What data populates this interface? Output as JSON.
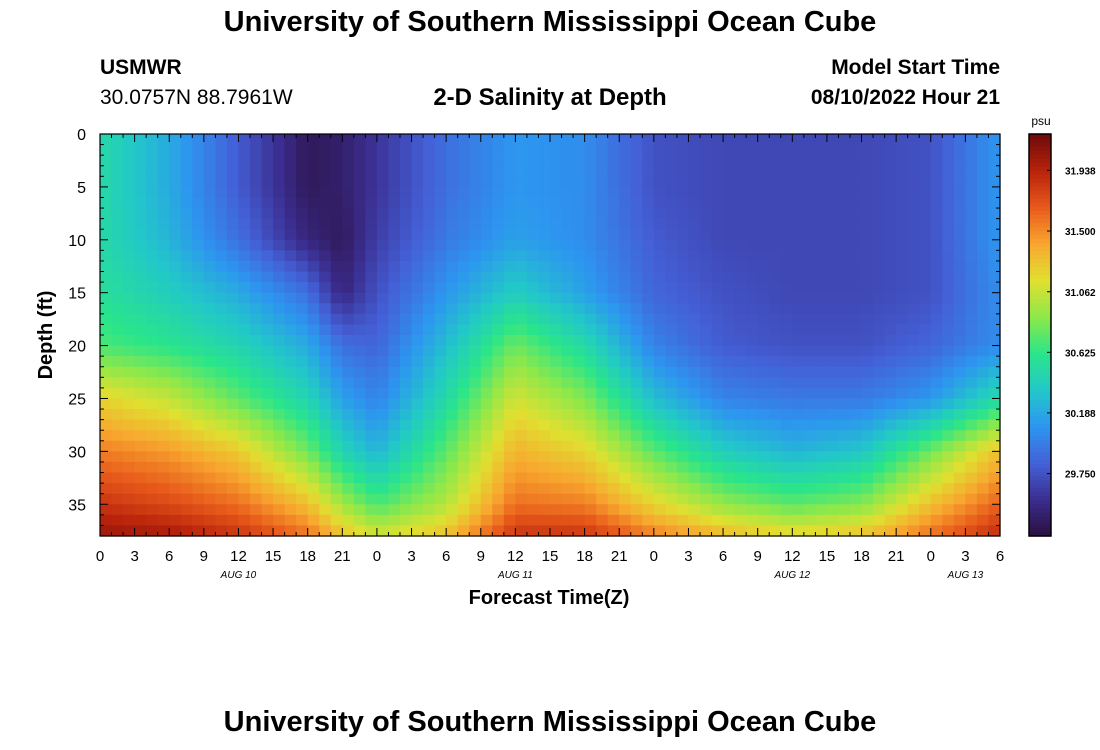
{
  "header": {
    "title": "University of Southern Mississippi Ocean Cube",
    "station_code": "USMWR",
    "coordinates": "30.0757N  88.7961W",
    "plot_title": "2-D Salinity at Depth",
    "model_start_label": "Model Start Time",
    "model_start_value": "08/10/2022 Hour 21"
  },
  "footer": {
    "title": "University of Southern Mississippi Ocean Cube"
  },
  "colors": {
    "colormap": [
      "#2a0f3c",
      "#3b2d8f",
      "#4461d8",
      "#2d95f0",
      "#22c8c8",
      "#2ae58a",
      "#8ee84a",
      "#e0e030",
      "#f8a72f",
      "#e85a1b",
      "#b8220b",
      "#6e0b0b"
    ]
  },
  "chart_data": {
    "type": "heatmap",
    "xlabel": "Forecast Time(Z)",
    "ylabel": "Depth (ft)",
    "x_range_hours": [
      0,
      78
    ],
    "y_range_ft": [
      0,
      38
    ],
    "x_tick_labels": [
      "0",
      "3",
      "6",
      "9",
      "12",
      "15",
      "18",
      "21",
      "0",
      "3",
      "6",
      "9",
      "12",
      "15",
      "18",
      "21",
      "0",
      "3",
      "6",
      "9",
      "12",
      "15",
      "18",
      "21",
      "0",
      "3",
      "6"
    ],
    "date_labels": [
      {
        "hour": 12,
        "label": "AUG 10"
      },
      {
        "hour": 36,
        "label": "AUG 11"
      },
      {
        "hour": 60,
        "label": "AUG 12"
      },
      {
        "hour": 75,
        "label": "AUG 13"
      }
    ],
    "y_ticks": [
      0,
      5,
      10,
      15,
      20,
      25,
      30,
      35
    ],
    "y_tick_labels": [
      "0",
      "5",
      "10",
      "15",
      "20",
      "25",
      "30",
      "35"
    ],
    "colorbar": {
      "unit": "psu",
      "min": 29.3,
      "max": 32.2,
      "tick_values": [
        31.938,
        31.5,
        31.062,
        30.625,
        30.188,
        29.75
      ],
      "tick_labels": [
        "31.938",
        "31.500",
        "31.062",
        "30.625",
        "30.188",
        "29.750"
      ]
    },
    "field": {
      "times_hours": [
        0,
        6,
        12,
        18,
        21,
        24,
        30,
        36,
        42,
        48,
        54,
        60,
        66,
        72,
        78
      ],
      "depths_ft": [
        0,
        5,
        10,
        15,
        20,
        25,
        30,
        35,
        38
      ],
      "salinity_psu": [
        [
          30.5,
          30.2,
          29.8,
          29.4,
          29.45,
          29.6,
          29.9,
          30.1,
          30.05,
          29.75,
          29.7,
          29.7,
          29.7,
          29.75,
          30.1
        ],
        [
          30.5,
          30.2,
          29.8,
          29.4,
          29.45,
          29.6,
          29.9,
          30.1,
          30.05,
          29.75,
          29.7,
          29.7,
          29.7,
          29.75,
          30.1
        ],
        [
          30.5,
          30.25,
          29.9,
          29.5,
          29.4,
          29.65,
          29.95,
          30.15,
          30.05,
          29.8,
          29.7,
          29.7,
          29.7,
          29.75,
          30.1
        ],
        [
          30.55,
          30.4,
          30.2,
          29.9,
          29.5,
          29.75,
          30.1,
          30.4,
          30.15,
          29.85,
          29.75,
          29.7,
          29.7,
          29.75,
          30.05
        ],
        [
          30.7,
          30.6,
          30.45,
          30.2,
          29.9,
          29.85,
          30.3,
          30.8,
          30.5,
          30.0,
          29.8,
          29.75,
          29.75,
          29.85,
          30.05
        ],
        [
          31.2,
          31.05,
          30.75,
          30.45,
          30.15,
          30.0,
          30.5,
          31.1,
          30.85,
          30.3,
          30.0,
          29.95,
          29.95,
          30.1,
          30.5
        ],
        [
          31.55,
          31.45,
          31.25,
          30.8,
          30.45,
          30.25,
          30.75,
          31.35,
          31.2,
          30.75,
          30.4,
          30.25,
          30.35,
          30.8,
          31.3
        ],
        [
          31.85,
          31.75,
          31.6,
          31.3,
          30.95,
          30.7,
          31.0,
          31.6,
          31.55,
          31.2,
          30.9,
          30.75,
          30.85,
          31.3,
          31.65
        ],
        [
          32.05,
          32.0,
          31.85,
          31.6,
          31.3,
          31.1,
          31.3,
          31.85,
          31.85,
          31.55,
          31.35,
          31.2,
          31.3,
          31.6,
          31.9
        ]
      ]
    }
  }
}
